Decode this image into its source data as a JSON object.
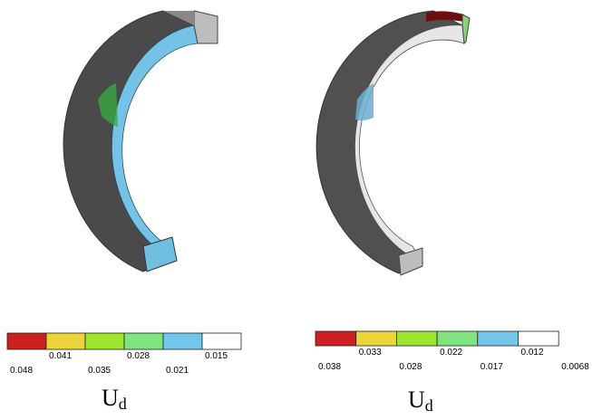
{
  "panels": [
    {
      "legend": {
        "colors": [
          "#cc1f1f",
          "#ebd43a",
          "#9ee62e",
          "#80e47e",
          "#72c6ea",
          "#ffffff"
        ],
        "labels": [
          "0.048",
          "0.041",
          "0.035",
          "0.028",
          "0.021",
          "0.015"
        ]
      },
      "title": {
        "main": "U",
        "sub": "d"
      }
    },
    {
      "legend": {
        "colors": [
          "#cc1f1f",
          "#ebd43a",
          "#9ee62e",
          "#80e47e",
          "#72c6ea",
          "#ffffff"
        ],
        "labels": [
          "0.038",
          "0.033",
          "0.028",
          "0.022",
          "0.017",
          "0.012",
          "0.0068"
        ]
      },
      "title": {
        "main": "U",
        "sub": "d"
      }
    }
  ]
}
